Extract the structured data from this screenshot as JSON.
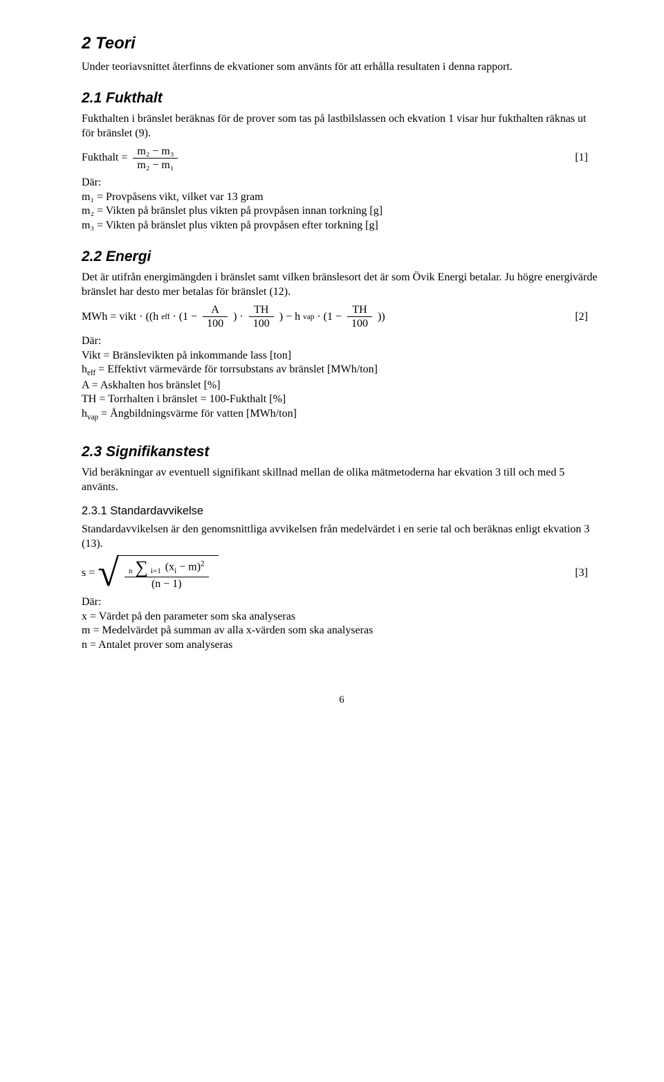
{
  "colors": {
    "text": "#000000",
    "background": "#ffffff",
    "rule": "#000000"
  },
  "typography": {
    "body_font": "Times New Roman",
    "heading_font": "Arial",
    "body_size_pt": 12,
    "h1_size_pt": 18,
    "h2_size_pt": 16,
    "h3_size_pt": 12
  },
  "s2": {
    "title": "2   Teori",
    "intro": "Under teoriavsnittet återfinns de ekvationer som använts för att erhålla resultaten i denna rapport."
  },
  "s21": {
    "title": "2.1   Fukthalt",
    "intro": "Fukthalten i bränslet beräknas för de prover som tas på lastbilslassen och ekvation 1 visar hur fukthalten räknas ut för bränslet (9).",
    "eq": {
      "lhs": "Fukthalt",
      "eq_sign": "=",
      "num": "m₂ − m₃",
      "den": "m₂ − m₁",
      "ref": "[1]"
    },
    "where": "Där:",
    "defs": {
      "m1": "m₁ = Provpåsens vikt, vilket var 13 gram",
      "m2": "m₂ = Vikten på bränslet plus vikten på provpåsen innan torkning [g]",
      "m3": "m₃ = Vikten på bränslet plus vikten på provpåsen efter torkning [g]"
    }
  },
  "s22": {
    "title": "2.2   Energi",
    "intro": "Det är utifrån energimängden i bränslet samt vilken bränslesort det är som Övik Energi betalar. Ju högre energivärde bränslet har desto mer betalas för bränslet (12).",
    "eq": {
      "pre": "MWh = vikt · ((h",
      "heff_sub": "eff",
      "after_heff": " · (1 −",
      "frac1_num": "A",
      "frac1_den": "100",
      "close1": ") ·",
      "frac2_num": "TH",
      "frac2_den": "100",
      "mid": ") − h",
      "hvap_sub": "vap",
      "after_hvap": " · (1 −",
      "frac3_num": "TH",
      "frac3_den": "100",
      "tail": "))",
      "ref": "[2]"
    },
    "where": "Där:",
    "defs": {
      "vikt": "Vikt = Bränslevikten på inkommande lass [ton]",
      "heff_pre": "h",
      "heff_sub": "eff",
      "heff_post": " = Effektivt värmevärde för torrsubstans av bränslet [MWh/ton]",
      "A": "A = Askhalten hos bränslet [%]",
      "TH": "TH = Torrhalten i bränslet = 100-Fukthalt [%]",
      "hvap_pre": "h",
      "hvap_sub": "vap",
      "hvap_post": " = Ångbildningsvärme för vatten [MWh/ton]"
    }
  },
  "s23": {
    "title": "2.3   Signifikanstest",
    "intro": "Vid beräkningar av eventuell signifikant skillnad mellan de olika mätmetoderna har ekvation 3 till och med 5 använts."
  },
  "s231": {
    "title": "2.3.1   Standardavvikelse",
    "intro": "Standardavvikelsen är den genomsnittliga avvikelsen från medelvärdet i en serie tal och beräknas enligt ekvation 3 (13).",
    "eq": {
      "lhs": "s =",
      "top_lim": "n",
      "bot_lim": "i=1",
      "summand_pre": "(x",
      "summand_sub": "i",
      "summand_mid": " − m)",
      "summand_sup": "2",
      "den": "(n − 1)",
      "ref": "[3]"
    },
    "where": "Där:",
    "defs": {
      "x": "x = Värdet på den parameter som ska analyseras",
      "m": "m = Medelvärdet på summan av alla x-värden som ska analyseras",
      "n": "n = Antalet prover som analyseras"
    }
  },
  "page_number": "6"
}
